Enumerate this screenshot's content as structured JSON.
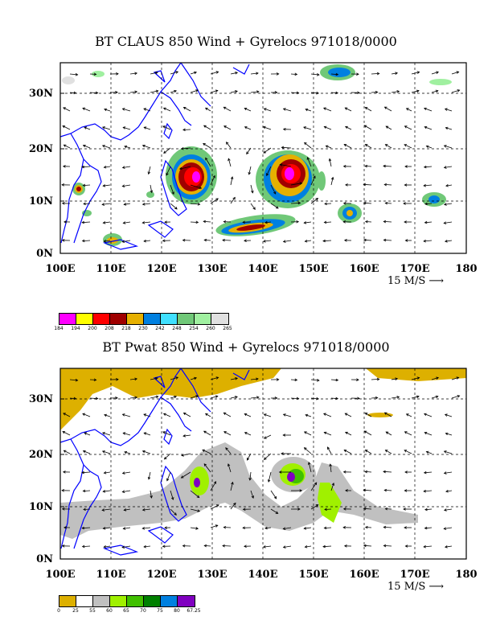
{
  "panels": [
    {
      "id": "claus",
      "title": "BT CLAUS 850 Wind + Gyrelocs 971018/0000",
      "x_ticks": [
        "100E",
        "110E",
        "120E",
        "130E",
        "140E",
        "150E",
        "160E",
        "170E",
        "180"
      ],
      "y_ticks": [
        "0N",
        "10N",
        "20N",
        "30N"
      ],
      "reference_vector": "15 M/S",
      "legend": {
        "labels": [
          "184",
          "194",
          "200",
          "208",
          "218",
          "230",
          "242",
          "248",
          "254",
          "260",
          "265"
        ],
        "colors": [
          "#ff00ff",
          "#ffff00",
          "#ff0000",
          "#a00000",
          "#e6b000",
          "#0080e0",
          "#40e0ff",
          "#70c878",
          "#a0f0a0",
          "#e0e0e0"
        ]
      }
    },
    {
      "id": "pwat",
      "title": "BT Pwat 850 Wind + Gyrelocs 971018/0000",
      "x_ticks": [
        "100E",
        "110E",
        "120E",
        "130E",
        "140E",
        "150E",
        "160E",
        "170E",
        "180"
      ],
      "y_ticks": [
        "0N",
        "10N",
        "20N",
        "30N"
      ],
      "reference_vector": "15 M/S",
      "legend": {
        "labels": [
          "0",
          "25",
          "55",
          "60",
          "65",
          "70",
          "75",
          "80",
          "67.25"
        ],
        "colors": [
          "#ddb000",
          "#ffffff",
          "#c0c0c0",
          "#a0f000",
          "#40c000",
          "#008000",
          "#0080e0",
          "#8000c0"
        ]
      }
    }
  ],
  "colors": {
    "coast": "#0000ff",
    "grid": "#000000",
    "vector": "#000000"
  }
}
